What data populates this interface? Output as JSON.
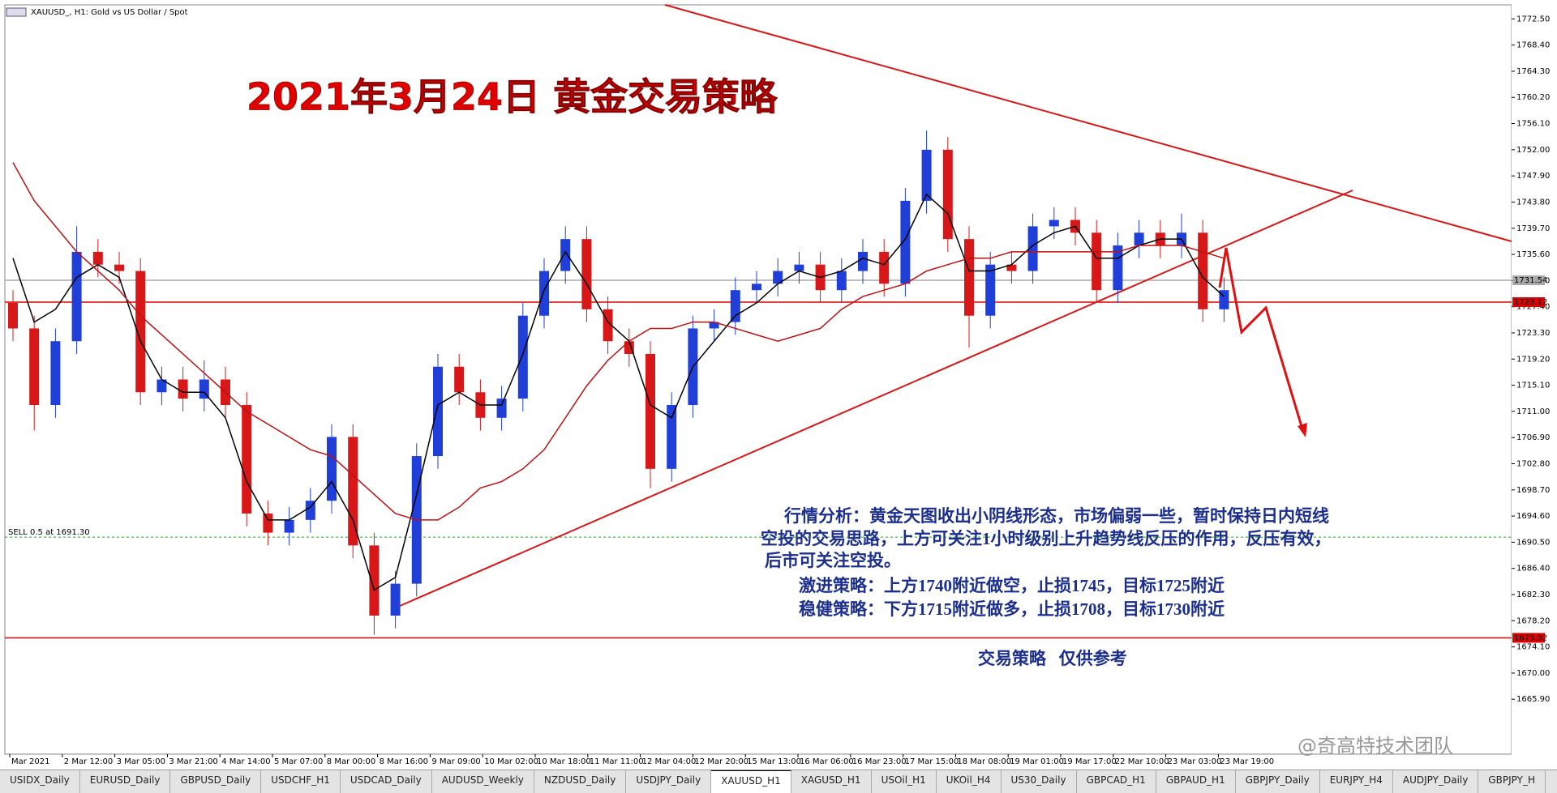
{
  "window": {
    "header": "XAUUSD_, H1:  Gold vs US Dollar / Spot",
    "watermark": "@奇高特技术团队"
  },
  "chart_data": {
    "type": "candlestick",
    "title": "2021年3月24日  黄金交易策略",
    "annotations": [
      "行情分析：黄金天图收出小阴线形态，市场偏弱一些，暂时保持日内短线",
      "空投的交易思路，上方可关注1小时级别上升趋势线反压的作用，反压有效，",
      "后市可关注空投。",
      "激进策略：上方1740附近做空，止损1745，目标1725附近",
      "稳健策略：下方1715附近做多，止损1708，目标1730附近",
      "交易策略   仅供参考"
    ],
    "x_labels": [
      "Mar 2021",
      "2 Mar 12:00",
      "3 Mar 05:00",
      "3 Mar 21:00",
      "4 Mar 14:00",
      "5 Mar 07:00",
      "8 Mar 00:00",
      "8 Mar 16:00",
      "9 Mar 09:00",
      "10 Mar 02:00",
      "10 Mar 18:00",
      "11 Mar 11:00",
      "12 Mar 04:00",
      "12 Mar 20:00",
      "15 Mar 13:00",
      "16 Mar 06:00",
      "16 Mar 23:00",
      "17 Mar 15:00",
      "18 Mar 08:00",
      "19 Mar 01:00",
      "19 Mar 17:00",
      "22 Mar 10:00",
      "23 Mar 03:00",
      "23 Mar 19:00"
    ],
    "ylim": [
      1657.3,
      1774.7
    ],
    "yticks": [
      {
        "value": 1665.9,
        "label": "1665.90"
      },
      {
        "value": 1670,
        "label": "1670.00"
      },
      {
        "value": 1674.1,
        "label": "1674.10"
      },
      {
        "value": 1678.2,
        "label": "1678.20"
      },
      {
        "value": 1682.3,
        "label": "1682.30"
      },
      {
        "value": 1686.4,
        "label": "1686.40"
      },
      {
        "value": 1690.5,
        "label": "1690.50"
      },
      {
        "value": 1694.6,
        "label": "1694.60"
      },
      {
        "value": 1698.7,
        "label": "1698.70"
      },
      {
        "value": 1702.8,
        "label": "1702.80"
      },
      {
        "value": 1706.9,
        "label": "1706.90"
      },
      {
        "value": 1711,
        "label": "1711.00"
      },
      {
        "value": 1715.1,
        "label": "1715.10"
      },
      {
        "value": 1719.2,
        "label": "1719.20"
      },
      {
        "value": 1723.3,
        "label": "1723.30"
      },
      {
        "value": 1727.4,
        "label": "1727.40"
      },
      {
        "value": 1731.5,
        "label": "1731.50"
      },
      {
        "value": 1735.6,
        "label": "1735.60"
      },
      {
        "value": 1739.7,
        "label": "1739.70"
      },
      {
        "value": 1743.8,
        "label": "1743.80"
      },
      {
        "value": 1747.9,
        "label": "1747.90"
      },
      {
        "value": 1752,
        "label": "1752.00"
      },
      {
        "value": 1756.1,
        "label": "1756.10"
      },
      {
        "value": 1760.2,
        "label": "1760.20"
      },
      {
        "value": 1764.3,
        "label": "1764.30"
      },
      {
        "value": 1768.4,
        "label": "1768.40"
      },
      {
        "value": 1772.5,
        "label": "1772.50"
      }
    ],
    "up_color": "#1f3fd8",
    "down_color": "#d81818",
    "open": [
      1728,
      1724,
      1712,
      1722,
      1736,
      1734,
      1733,
      1714,
      1716,
      1713,
      1716,
      1712,
      1695,
      1692,
      1694,
      1697,
      1707,
      1690,
      1679,
      1684,
      1704,
      1718,
      1714,
      1710,
      1713,
      1726,
      1733,
      1738,
      1727,
      1722,
      1720,
      1702,
      1712,
      1724,
      1725,
      1730,
      1731,
      1733,
      1734,
      1730,
      1733,
      1736,
      1731,
      1744,
      1752,
      1738,
      1726,
      1734,
      1733,
      1740,
      1741,
      1739,
      1730,
      1737,
      1739,
      1737,
      1739,
      1727
    ],
    "high": [
      1730,
      1726,
      1724,
      1740,
      1738,
      1736,
      1735,
      1718,
      1718,
      1719,
      1718,
      1714,
      1697,
      1696,
      1699,
      1709,
      1709,
      1692,
      1686,
      1706,
      1720,
      1720,
      1716,
      1715,
      1728,
      1735,
      1740,
      1740,
      1729,
      1724,
      1722,
      1714,
      1726,
      1727,
      1732,
      1733,
      1735,
      1736,
      1736,
      1735,
      1738,
      1738,
      1746,
      1755,
      1754,
      1740,
      1736,
      1736,
      1742,
      1743,
      1743,
      1741,
      1739,
      1741,
      1741,
      1742,
      1741,
      1732
    ],
    "low": [
      1722,
      1708,
      1710,
      1720,
      1732,
      1731,
      1712,
      1712,
      1711,
      1711,
      1710,
      1693,
      1690,
      1690,
      1692,
      1695,
      1688,
      1676,
      1677,
      1682,
      1702,
      1712,
      1708,
      1708,
      1711,
      1724,
      1731,
      1725,
      1720,
      1718,
      1699,
      1700,
      1710,
      1722,
      1723,
      1728,
      1729,
      1731,
      1728,
      1728,
      1731,
      1729,
      1729,
      1742,
      1736,
      1721,
      1724,
      1731,
      1731,
      1738,
      1737,
      1728,
      1728,
      1735,
      1735,
      1735,
      1725,
      1725
    ],
    "close": [
      1724,
      1712,
      1722,
      1736,
      1734,
      1733,
      1714,
      1716,
      1713,
      1716,
      1712,
      1695,
      1692,
      1694,
      1697,
      1707,
      1690,
      1679,
      1684,
      1704,
      1718,
      1714,
      1710,
      1713,
      1726,
      1733,
      1738,
      1727,
      1722,
      1720,
      1702,
      1712,
      1724,
      1725,
      1730,
      1731,
      1733,
      1734,
      1730,
      1733,
      1736,
      1731,
      1744,
      1752,
      1738,
      1726,
      1734,
      1733,
      1740,
      1741,
      1739,
      1730,
      1737,
      1739,
      1737,
      1739,
      1727,
      1730
    ],
    "series": [
      {
        "color": "#000000",
        "values": [
          1735,
          1725,
          1727,
          1732,
          1734,
          1732,
          1722,
          1716,
          1714,
          1714,
          1710,
          1700,
          1694,
          1694,
          1696,
          1700,
          1694,
          1683,
          1685,
          1698,
          1712,
          1714,
          1712,
          1712,
          1720,
          1730,
          1736,
          1731,
          1725,
          1722,
          1712,
          1710,
          1718,
          1722,
          1726,
          1728,
          1731,
          1733,
          1732,
          1733,
          1735,
          1734,
          1738,
          1745,
          1742,
          1733,
          1733,
          1734,
          1737,
          1739,
          1740,
          1735,
          1735,
          1737,
          1738,
          1738,
          1732,
          1729
        ]
      },
      {
        "color": "#c01010",
        "values": [
          1750,
          1744,
          1740,
          1736,
          1733,
          1730,
          1726,
          1723,
          1720,
          1717,
          1714,
          1711,
          1709,
          1707,
          1705,
          1704,
          1701,
          1698,
          1695,
          1694,
          1694,
          1696,
          1699,
          1700,
          1702,
          1705,
          1710,
          1715,
          1719,
          1722,
          1724,
          1724,
          1725,
          1725,
          1724,
          1723,
          1722,
          1723,
          1724,
          1727,
          1729,
          1730,
          1731,
          1733,
          1734,
          1735,
          1735,
          1736,
          1736,
          1736,
          1736,
          1736,
          1736,
          1737,
          1737,
          1737,
          1736,
          1735
        ]
      }
    ],
    "hlines": [
      {
        "value": 1731.54,
        "color": "#a8a8a8"
      },
      {
        "value": 1728.12,
        "color": "#e00000"
      },
      {
        "value": 1675.52,
        "color": "#e00000"
      },
      {
        "value": 1691.3,
        "color": "#2aa02a",
        "label": "SELL 0.5 at 1691.30"
      }
    ]
  },
  "tabs": [
    "USIDX_Daily",
    "EURUSD_Daily",
    "GBPUSD_Daily",
    "USDCHF_H1",
    "USDCAD_Daily",
    "AUDUSD_Weekly",
    "NZDUSD_Daily",
    "USDJPY_Daily",
    "XAUUSD_H1",
    "XAGUSD_H1",
    "USOil_H1",
    "UKOil_H4",
    "US30_Daily",
    "GBPCAD_H1",
    "GBPAUD_H1",
    "GBPJPY_Daily",
    "EURJPY_H4",
    "AUDJPY_Daily",
    "GBPJPY_H"
  ],
  "active_tab": 8
}
